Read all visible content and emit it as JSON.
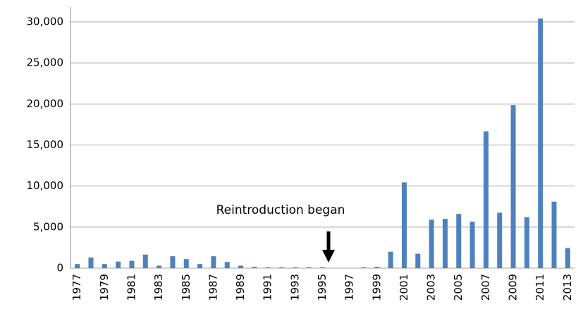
{
  "chart_data": {
    "type": "bar",
    "categories": [
      "1977",
      null,
      "1979",
      null,
      "1981",
      null,
      "1983",
      null,
      "1985",
      null,
      "1987",
      null,
      "1989",
      null,
      "1991",
      null,
      "1993",
      null,
      "1995",
      null,
      "1997",
      null,
      "1999",
      null,
      "2001",
      null,
      "2003",
      null,
      "2005",
      null,
      "2007",
      null,
      "2009",
      null,
      "2011",
      null,
      "2013"
    ],
    "values": [
      500,
      1300,
      500,
      800,
      900,
      1650,
      300,
      1450,
      1100,
      500,
      1450,
      750,
      300,
      150,
      100,
      100,
      100,
      100,
      100,
      0,
      0,
      100,
      150,
      2000,
      10450,
      1750,
      5900,
      6000,
      6600,
      5650,
      16650,
      6750,
      19850,
      6200,
      30400,
      8100,
      2450
    ],
    "color": "#4f81bd",
    "ylim": [
      0,
      30000
    ],
    "yticks": [
      0,
      {
        "value": 5000,
        "label": "5,000"
      },
      {
        "value": 10000,
        "label": "10,000"
      },
      {
        "value": 15000,
        "label": "15,000"
      },
      {
        "value": 20000,
        "label": "20,000"
      },
      {
        "value": 25000,
        "label": "25,000"
      },
      {
        "value": 30000,
        "label": "30,000"
      }
    ],
    "grid": true,
    "annotation": "Reintroduction began"
  }
}
